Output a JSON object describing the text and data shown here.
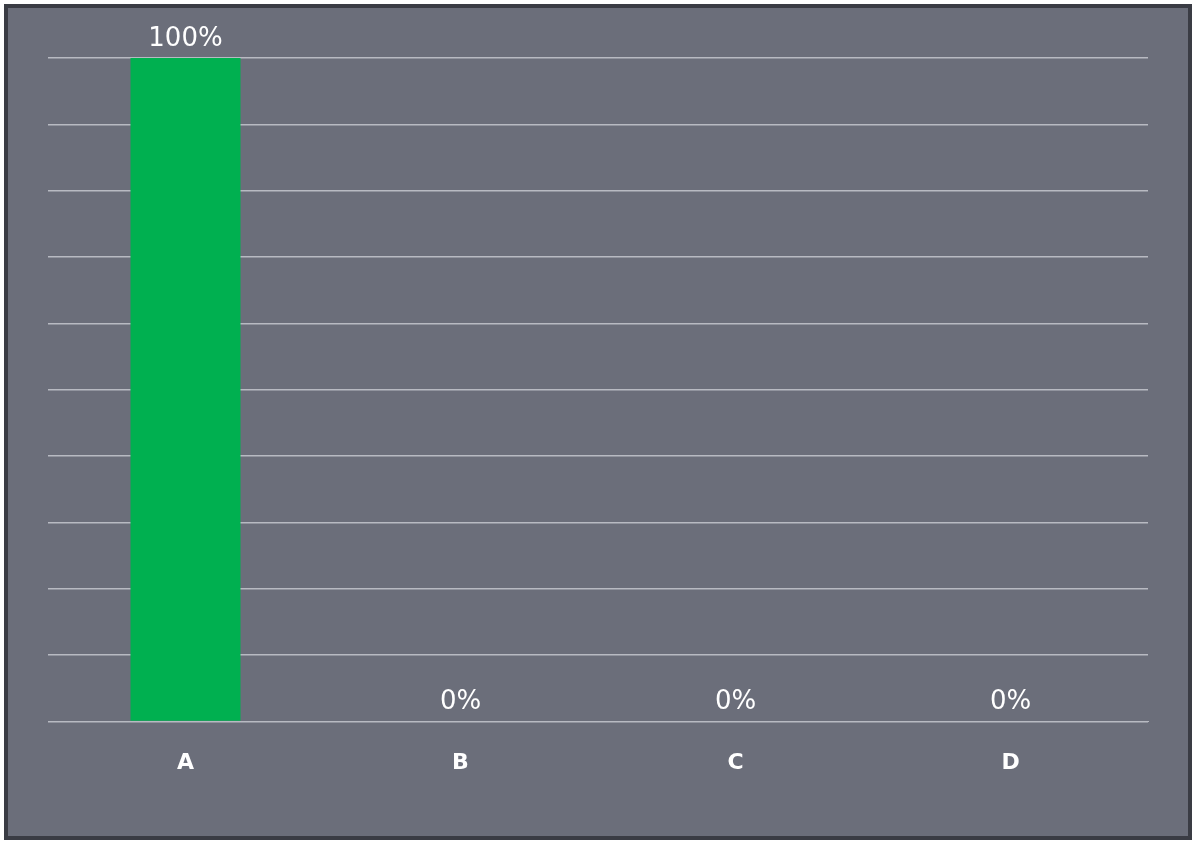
{
  "chart_data": {
    "type": "bar",
    "categories": [
      "A",
      "B",
      "C",
      "D"
    ],
    "values": [
      100,
      0,
      0,
      0
    ],
    "colors": [
      "#00b050",
      "#005a2a",
      "#005a2a",
      "#005a2a"
    ],
    "value_labels": [
      "100%",
      "0%",
      "0%",
      "0%"
    ],
    "ylim": [
      0,
      100
    ],
    "yticks": [
      {
        "value": 0,
        "label": null
      },
      {
        "value": 10,
        "label": null
      },
      {
        "value": 20,
        "label": null
      },
      {
        "value": 30,
        "label": null
      },
      {
        "value": 40,
        "label": null
      },
      {
        "value": 50,
        "label": null
      },
      {
        "value": 60,
        "label": null
      },
      {
        "value": 70,
        "label": null
      },
      {
        "value": 80,
        "label": null
      },
      {
        "value": 90,
        "label": null
      },
      {
        "value": 100,
        "label": null
      }
    ],
    "grid": "y",
    "tick_labels": "x",
    "legend": false
  }
}
